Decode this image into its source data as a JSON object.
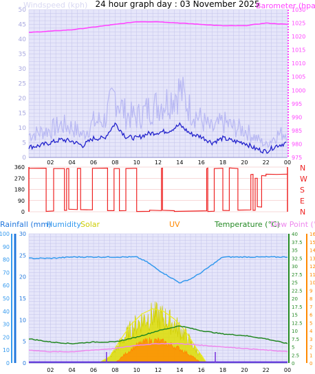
{
  "title": "24 hour graph day : 03 November 2025",
  "colors": {
    "plot_bg": "#e6e6fa",
    "grid": "#c3c3ea",
    "wind_gust": "#b9b9f3",
    "wind_avg": "#2222cc",
    "barometer": "#ff44ff",
    "direction": "#ee2222",
    "humidity": "#3399ee",
    "temperature": "#228822",
    "dewpoint": "#ee88ee",
    "solar": "#dddd00",
    "uv": "#ff8800",
    "rain": "#2277dd",
    "rain_bar": "#5522dd"
  },
  "chart_data": [
    {
      "type": "line",
      "name": "wind-baro",
      "title": "24 hour graph day : 03 November 2025",
      "ylabel_left": "Windspeed (kph)",
      "ylabel_right": "Barometer (hpa)",
      "x_ticks": [
        "02",
        "04",
        "06",
        "08",
        "10",
        "12",
        "14",
        "16",
        "18",
        "20",
        "22",
        "00"
      ],
      "ylim_left": [
        0,
        50
      ],
      "y_ticks_left": [
        "0",
        "5",
        "10",
        "15",
        "20",
        "25",
        "30",
        "35",
        "40",
        "45",
        "50"
      ],
      "ylim_right": [
        975,
        1030
      ],
      "y_ticks_right": [
        "975",
        "980",
        "985",
        "990",
        "995",
        "1000",
        "1005",
        "1010",
        "1015",
        "1020",
        "1025",
        "1030"
      ],
      "grid": true,
      "series": [
        {
          "name": "Windspeed",
          "axis": "left",
          "x": [
            0,
            1,
            2,
            3,
            4,
            5,
            6,
            7,
            8,
            9,
            10,
            11,
            12,
            13,
            14,
            15,
            16,
            17,
            18,
            19,
            20,
            21,
            22,
            23,
            24
          ],
          "values": [
            3.5,
            4,
            5,
            6,
            5.5,
            4,
            6.5,
            6.5,
            11.5,
            7,
            6.5,
            8,
            8.5,
            9,
            11,
            8,
            7,
            5,
            6.5,
            5.5,
            5,
            3,
            2,
            4,
            5
          ]
        },
        {
          "name": "Gust",
          "axis": "left",
          "x": [
            0,
            1,
            2,
            3,
            4,
            5,
            6,
            7,
            8,
            9,
            10,
            11,
            12,
            13,
            14,
            15,
            16,
            17,
            18,
            19,
            20,
            21,
            22,
            23,
            24
          ],
          "values": [
            9,
            10,
            11,
            13,
            12,
            9,
            14,
            15,
            25,
            17,
            16,
            19,
            21,
            23,
            27,
            19,
            15,
            11,
            14,
            12,
            11,
            8,
            5,
            9,
            10
          ]
        },
        {
          "name": "Barometer",
          "axis": "right",
          "x": [
            0,
            2,
            4,
            6,
            8,
            10,
            12,
            14,
            16,
            18,
            20,
            22,
            24
          ],
          "values": [
            1021.5,
            1022,
            1022.5,
            1023.5,
            1024.5,
            1025.5,
            1025.5,
            1025,
            1024.5,
            1024,
            1024,
            1025,
            1024.5
          ]
        }
      ]
    },
    {
      "type": "line",
      "name": "wind-direction",
      "x_ticks": [],
      "ylim": [
        0,
        360
      ],
      "y_ticks": [
        "0",
        "90",
        "180",
        "270",
        "360"
      ],
      "compass": [
        "N",
        "W",
        "S",
        "E",
        "N"
      ],
      "series": [
        {
          "name": "Wind Direction",
          "segments": [
            [
              [
                0,
                350
              ],
              [
                1.6,
                350
              ],
              [
                1.6,
                5
              ],
              [
                2.3,
                5
              ],
              [
                2.3,
                350
              ],
              [
                3.3,
                350
              ],
              [
                3.3,
                10
              ],
              [
                3.5,
                10
              ],
              [
                3.5,
                350
              ],
              [
                3.7,
                350
              ],
              [
                3.7,
                20
              ],
              [
                4.5,
                20
              ],
              [
                4.5,
                350
              ],
              [
                4.8,
                350
              ],
              [
                4.8,
                15
              ],
              [
                5.9,
                15
              ],
              [
                5.9,
                350
              ],
              [
                7.3,
                350
              ],
              [
                7.3,
                10
              ],
              [
                7.9,
                10
              ],
              [
                7.9,
                350
              ],
              [
                8.4,
                350
              ],
              [
                8.4,
                10
              ],
              [
                9.0,
                10
              ],
              [
                9.0,
                350
              ],
              [
                10,
                350
              ],
              [
                10,
                5
              ],
              [
                11.2,
                5
              ],
              [
                11.2,
                10
              ],
              [
                12.3,
                10
              ],
              [
                12.3,
                350
              ],
              [
                12.4,
                350
              ],
              [
                12.4,
                10
              ],
              [
                13.5,
                10
              ],
              [
                13.5,
                5
              ],
              [
                16.5,
                5
              ],
              [
                16.5,
                350
              ],
              [
                16.6,
                350
              ],
              [
                16.6,
                5
              ],
              [
                17.2,
                5
              ],
              [
                17.2,
                350
              ],
              [
                18.0,
                350
              ],
              [
                18.0,
                10
              ],
              [
                18.6,
                10
              ],
              [
                18.6,
                350
              ],
              [
                19.4,
                350
              ],
              [
                19.4,
                15
              ],
              [
                20.6,
                15
              ],
              [
                20.6,
                300
              ],
              [
                20.8,
                300
              ],
              [
                20.8,
                10
              ],
              [
                21.0,
                10
              ],
              [
                21.0,
                270
              ],
              [
                21.2,
                270
              ],
              [
                21.2,
                40
              ],
              [
                21.6,
                40
              ],
              [
                21.6,
                290
              ],
              [
                22.0,
                290
              ],
              [
                22.0,
                300
              ],
              [
                23,
                300
              ],
              [
                24,
                300
              ]
            ]
          ]
        }
      ]
    },
    {
      "type": "line",
      "name": "temp-humidity",
      "legend": [
        "Rainfall (mm)",
        "Humidity",
        "Solar",
        "UV",
        "Temperature (°C)",
        "Dew Point (°C)"
      ],
      "x_ticks": [
        "02",
        "04",
        "06",
        "08",
        "10",
        "12",
        "14",
        "16",
        "18",
        "20",
        "22",
        "00"
      ],
      "axes": [
        {
          "name": "humidity",
          "range": [
            0,
            100
          ],
          "ticks": [
            "0",
            "10",
            "20",
            "30",
            "40",
            "50",
            "60",
            "70",
            "80",
            "90",
            "100"
          ]
        },
        {
          "name": "rainfall",
          "range": [
            0,
            30
          ],
          "ticks": [
            "0",
            "5",
            "10",
            "15",
            "20",
            "25",
            "30"
          ]
        },
        {
          "name": "temperature",
          "range": [
            0,
            40
          ],
          "ticks": [
            "0",
            "2.5",
            "5",
            "7.5",
            "10",
            "12.5",
            "15",
            "17.5",
            "20",
            "22.5",
            "25",
            "27.5",
            "30",
            "32.5",
            "35",
            "37.5",
            "40"
          ]
        },
        {
          "name": "uv",
          "range": [
            0,
            16
          ],
          "ticks": [
            "0",
            "1",
            "2",
            "3",
            "4",
            "5",
            "6",
            "7",
            "8",
            "9",
            "10",
            "11",
            "12",
            "13",
            "14",
            "15",
            "16"
          ]
        }
      ],
      "series": [
        {
          "name": "Humidity",
          "axis": "humidity",
          "x": [
            0,
            2,
            4,
            6,
            8,
            10,
            11,
            12,
            13,
            14,
            15,
            16,
            17,
            18,
            20,
            22,
            24
          ],
          "values": [
            81,
            81,
            82,
            82,
            82,
            82,
            78,
            72,
            67,
            62,
            65,
            70,
            76,
            82,
            82,
            82,
            82
          ]
        },
        {
          "name": "Temperature",
          "axis": "temperature",
          "x": [
            0,
            2,
            4,
            6,
            8,
            10,
            12,
            14,
            16,
            18,
            20,
            22,
            24
          ],
          "values": [
            7.5,
            6.5,
            6,
            6.5,
            6.5,
            8,
            10,
            11.5,
            10,
            9,
            8.5,
            7.5,
            6
          ]
        },
        {
          "name": "Dew Point",
          "axis": "temperature",
          "x": [
            0,
            2,
            4,
            6,
            8,
            10,
            12,
            14,
            16,
            18,
            20,
            22,
            24
          ],
          "values": [
            4,
            3.5,
            3.5,
            4,
            4.5,
            5.5,
            6,
            6,
            5.5,
            5,
            4.5,
            4,
            3.5
          ]
        },
        {
          "name": "Solar",
          "axis": "humidity",
          "x": [
            6.5,
            7.5,
            8.5,
            9.5,
            10.5,
            11.5,
            12.5,
            13.5,
            14.5,
            15.5,
            16.5
          ],
          "values": [
            0,
            5,
            18,
            30,
            38,
            42,
            40,
            34,
            25,
            12,
            0
          ]
        },
        {
          "name": "UV",
          "axis": "uv",
          "x": [
            8,
            9,
            10,
            11,
            12,
            13,
            14,
            15,
            16
          ],
          "values": [
            0,
            1.2,
            2.2,
            2.8,
            2.8,
            2.4,
            1.8,
            1,
            0
          ]
        },
        {
          "name": "Rainfall",
          "axis": "rainfall",
          "x": [
            0,
            24
          ],
          "values": [
            0,
            0
          ]
        }
      ],
      "sunrise": 7.2,
      "sunset": 17.3
    }
  ]
}
